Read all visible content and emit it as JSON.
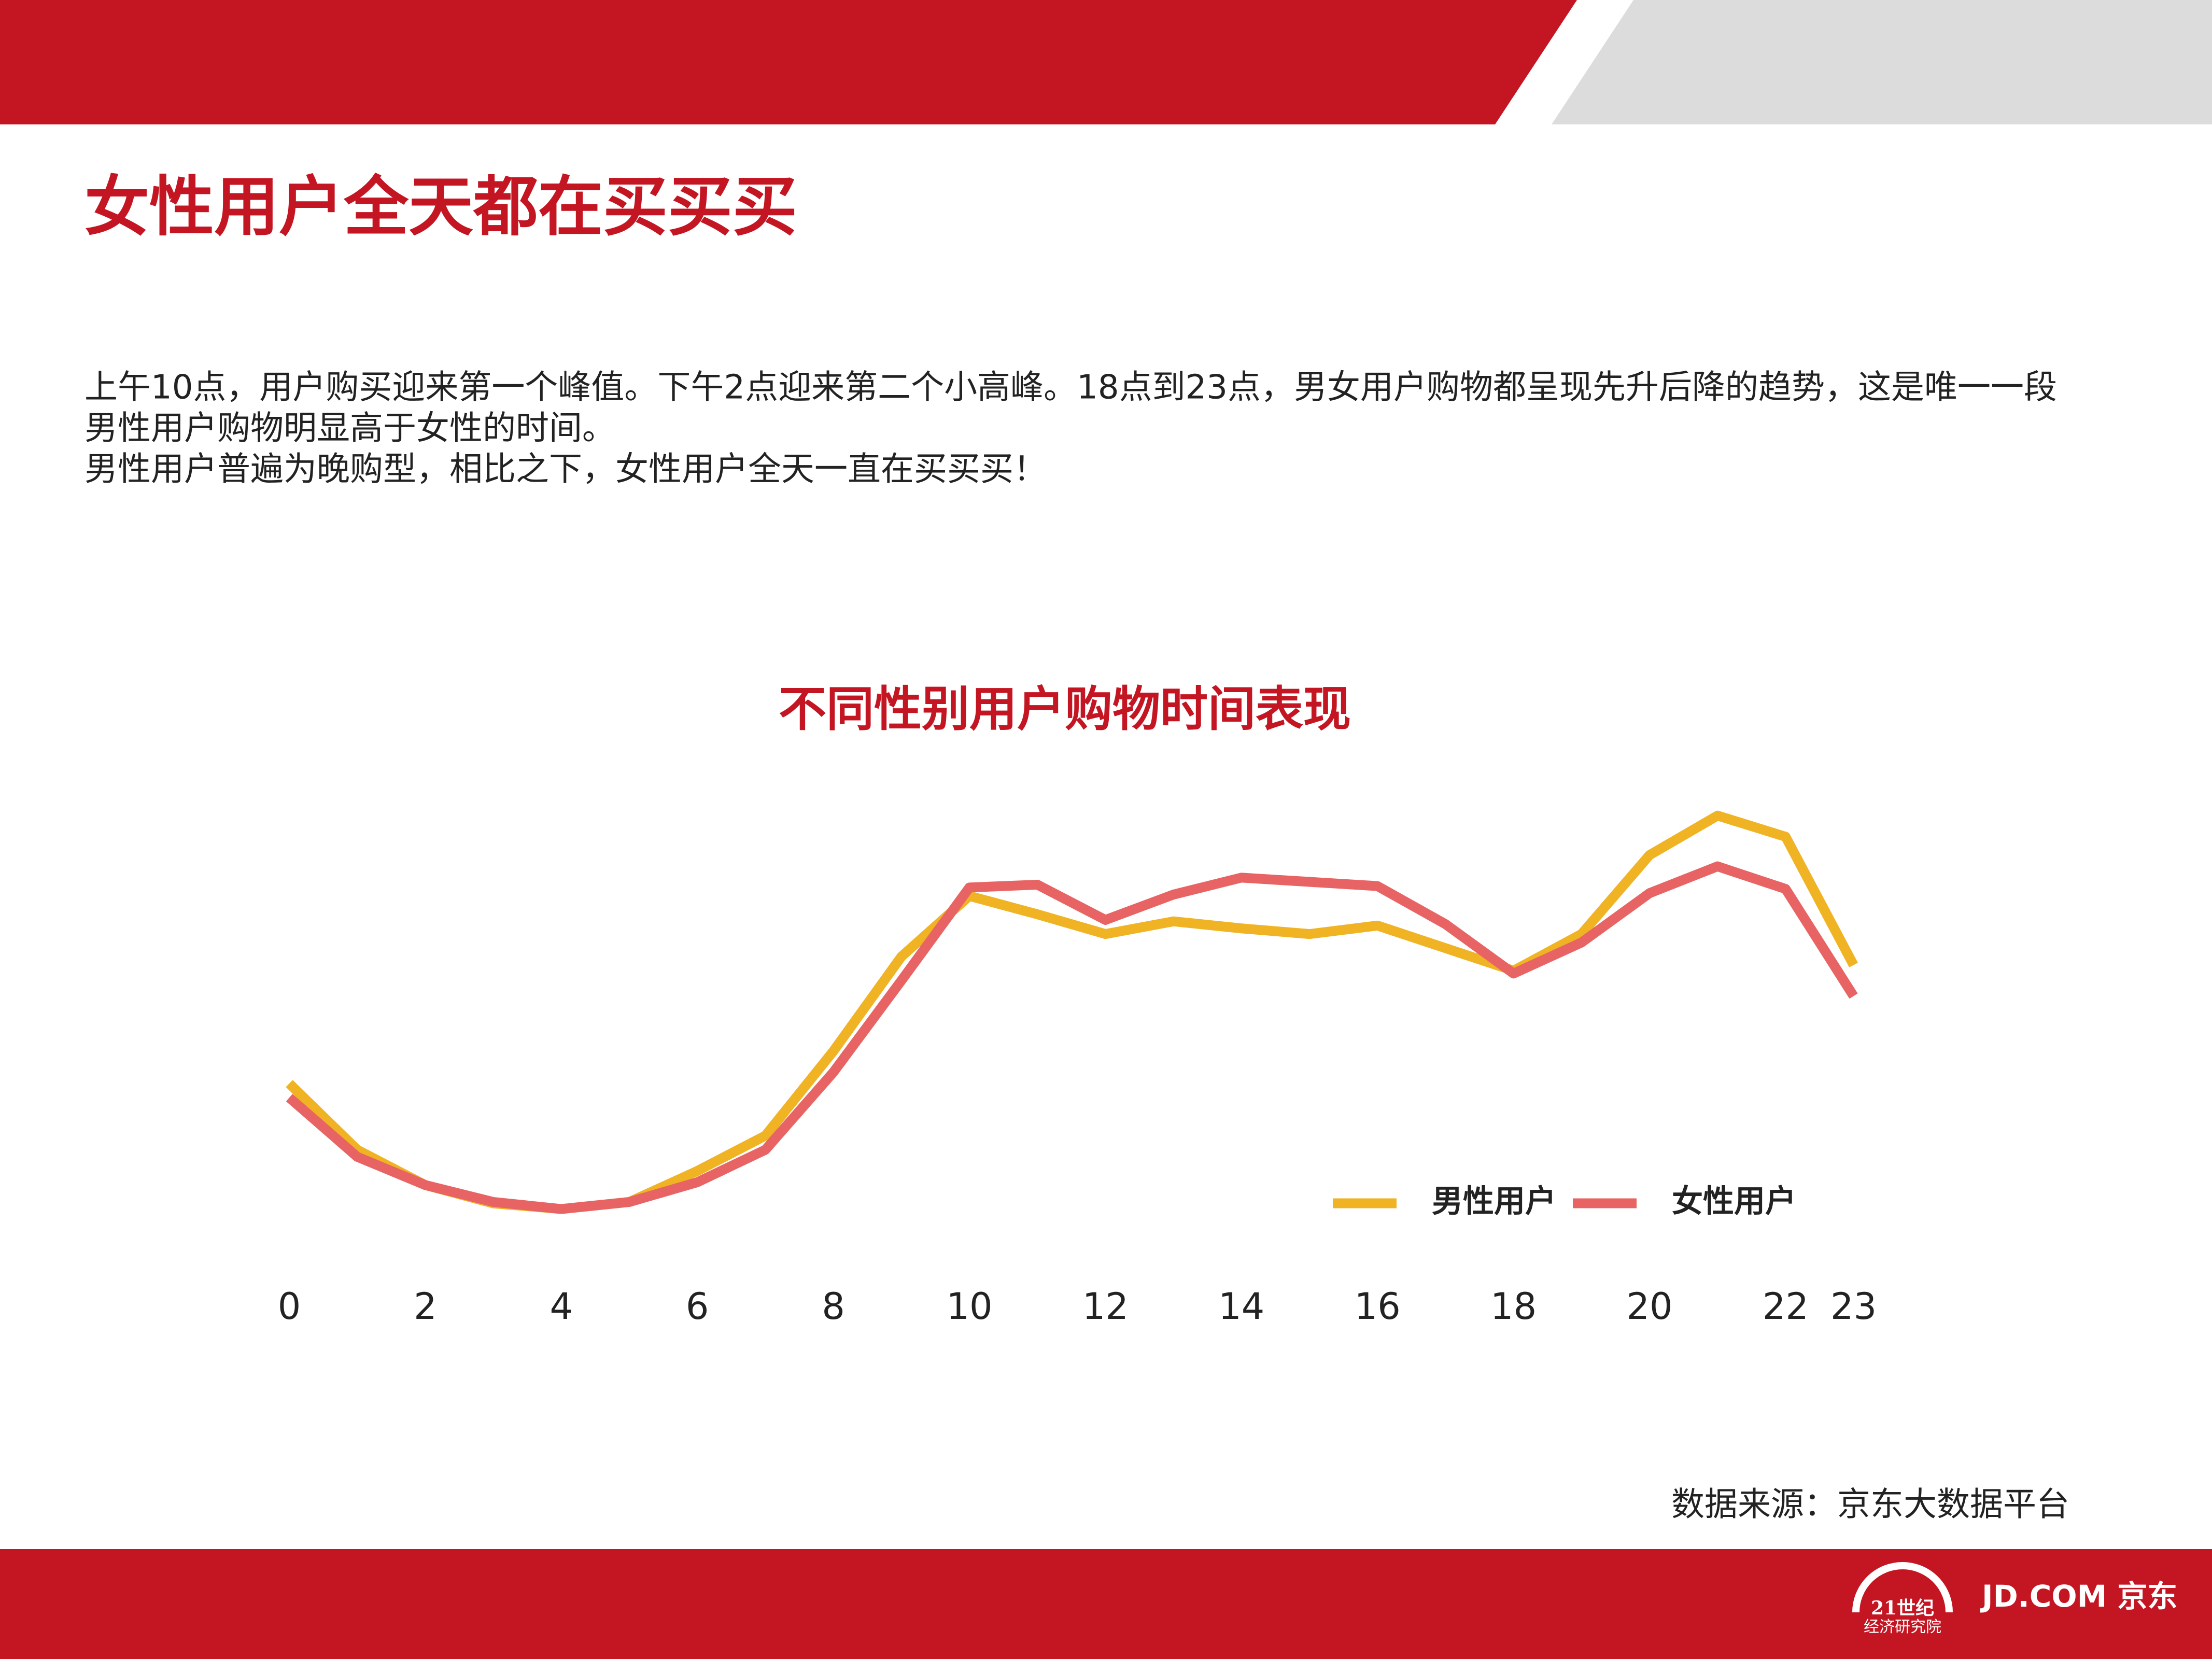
{
  "page_title": "女性用户全天都在买买买",
  "paragraphs": [
    "上午10点，用户购买迎来第一个峰值。下午2点迎来第二个小高峰。18点到23点，男女用户购物都呈现先升后降的趋势，这是唯一一段",
    "男性用户购物明显高于女性的时间。",
    "男性用户普遍为晚购型，相比之下，女性用户全天一直在买买买！"
  ],
  "chart_data": {
    "type": "line",
    "title": "不同性别用户购物时间表现",
    "categories": [
      "0",
      null,
      "2",
      null,
      "4",
      null,
      "6",
      null,
      "8",
      null,
      "10",
      null,
      "12",
      null,
      "14",
      null,
      "16",
      null,
      "18",
      null,
      "20",
      null,
      "22",
      "23"
    ],
    "series": [
      {
        "name": "男性用户",
        "color": "#f0b323",
        "values": [
          132,
          85,
          60,
          47,
          43,
          48,
          70,
          95,
          155,
          222,
          265,
          252,
          238,
          247,
          242,
          238,
          244,
          228,
          212,
          238,
          294,
          322,
          307,
          216
        ]
      },
      {
        "name": "女性用户",
        "color": "#e86464",
        "values": [
          122,
          80,
          60,
          48,
          43,
          48,
          62,
          85,
          140,
          205,
          271,
          273,
          248,
          266,
          278,
          275,
          272,
          245,
          210,
          232,
          267,
          286,
          270,
          194
        ]
      }
    ],
    "ylim": [
      0,
      350
    ]
  },
  "source": "数据来源：京东大数据平台",
  "logos": [
    "21世纪",
    "经济研究院",
    "JD.COM 京东"
  ]
}
